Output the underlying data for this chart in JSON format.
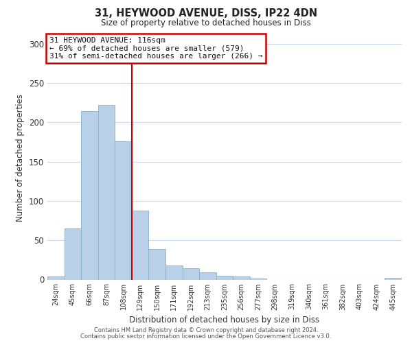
{
  "title1": "31, HEYWOOD AVENUE, DISS, IP22 4DN",
  "title2": "Size of property relative to detached houses in Diss",
  "xlabel": "Distribution of detached houses by size in Diss",
  "ylabel": "Number of detached properties",
  "bar_labels": [
    "24sqm",
    "45sqm",
    "66sqm",
    "87sqm",
    "108sqm",
    "129sqm",
    "150sqm",
    "171sqm",
    "192sqm",
    "213sqm",
    "235sqm",
    "256sqm",
    "277sqm",
    "298sqm",
    "319sqm",
    "340sqm",
    "361sqm",
    "382sqm",
    "403sqm",
    "424sqm",
    "445sqm"
  ],
  "bar_values": [
    4,
    65,
    214,
    222,
    176,
    88,
    39,
    18,
    14,
    9,
    5,
    4,
    1,
    0,
    0,
    0,
    0,
    0,
    0,
    0,
    2
  ],
  "bar_color": "#b8d0e8",
  "bar_edge_color": "#8ab0d0",
  "red_line_color": "#cc0000",
  "annotation_box_edge_color": "#cc0000",
  "annotation_text_line1": "31 HEYWOOD AVENUE: 116sqm",
  "annotation_text_line2": "← 69% of detached houses are smaller (579)",
  "annotation_text_line3": "31% of semi-detached houses are larger (266) →",
  "annotation_box_bg": "#ffffff",
  "ylim": [
    0,
    310
  ],
  "yticks": [
    0,
    50,
    100,
    150,
    200,
    250,
    300
  ],
  "footer_line1": "Contains HM Land Registry data © Crown copyright and database right 2024.",
  "footer_line2": "Contains public sector information licensed under the Open Government Licence v3.0.",
  "bg_color": "#ffffff",
  "grid_color": "#ccd8ec"
}
